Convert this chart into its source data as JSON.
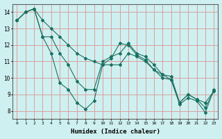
{
  "xlabel": "Humidex (Indice chaleur)",
  "background_color": "#cff0f0",
  "grid_color": "#d8a0a0",
  "line_color": "#1a7060",
  "xlim": [
    -0.5,
    23.5
  ],
  "ylim": [
    7.5,
    14.5
  ],
  "xticks": [
    0,
    1,
    2,
    3,
    4,
    5,
    6,
    7,
    8,
    9,
    10,
    11,
    12,
    13,
    14,
    15,
    16,
    17,
    18,
    19,
    20,
    21,
    22,
    23
  ],
  "yticks": [
    8,
    9,
    10,
    11,
    12,
    13,
    14
  ],
  "line1": {
    "x": [
      0,
      1,
      2,
      3,
      4,
      5,
      6,
      7,
      8,
      9,
      10,
      11,
      12,
      13,
      14,
      15,
      16,
      17,
      18,
      19,
      20,
      21,
      22,
      23
    ],
    "y": [
      13.5,
      14.0,
      14.2,
      12.5,
      11.5,
      9.7,
      9.3,
      8.5,
      8.1,
      8.6,
      10.8,
      11.2,
      12.1,
      12.0,
      11.4,
      11.1,
      10.5,
      10.0,
      9.9,
      8.4,
      8.8,
      8.6,
      7.9,
      9.3
    ]
  },
  "line2": {
    "x": [
      0,
      1,
      2,
      3,
      4,
      5,
      6,
      7,
      8,
      9,
      10,
      11,
      12,
      13,
      14,
      15,
      16,
      17,
      18,
      19,
      20,
      21,
      22,
      23
    ],
    "y": [
      13.5,
      14.0,
      14.2,
      12.5,
      12.5,
      11.5,
      10.8,
      9.8,
      9.3,
      9.3,
      11.0,
      11.3,
      11.5,
      12.1,
      11.5,
      11.3,
      10.8,
      10.2,
      10.1,
      8.5,
      9.0,
      8.7,
      8.5,
      9.2
    ]
  },
  "line3": {
    "x": [
      0,
      1,
      2,
      3,
      4,
      5,
      6,
      7,
      8,
      9,
      10,
      11,
      12,
      13,
      14,
      15,
      16,
      17,
      18,
      19,
      20,
      21,
      22,
      23
    ],
    "y": [
      13.5,
      14.0,
      14.2,
      13.5,
      13.0,
      12.5,
      12.0,
      11.5,
      11.2,
      11.0,
      10.8,
      10.8,
      10.8,
      11.5,
      11.3,
      11.0,
      10.5,
      10.2,
      9.9,
      8.5,
      9.0,
      8.7,
      8.2,
      9.2
    ]
  }
}
